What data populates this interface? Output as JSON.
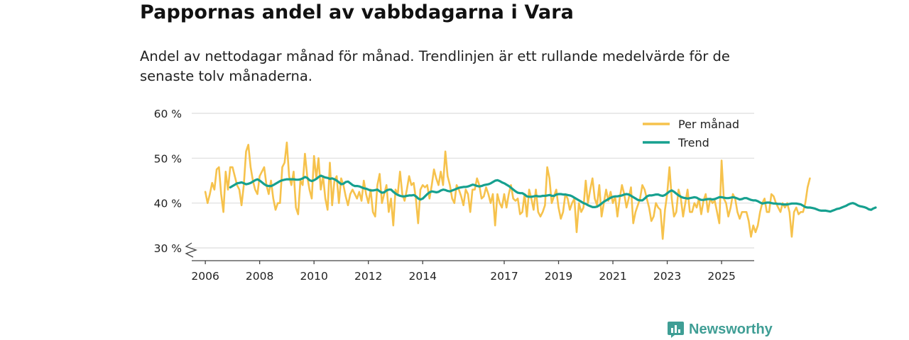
{
  "page": {
    "title": "Pappornas andel av vabbdagarna i Vara",
    "subtitle": "Andel av nettodagar månad för månad. Trendlinjen är ett rullande medelvärde för de senaste tolv månaderna.",
    "brand": "Newsworthy"
  },
  "colors": {
    "monthly": "#f6c24c",
    "trend": "#16a08f",
    "grid": "#dddddd",
    "axis": "#444444",
    "text": "#222222",
    "brand": "#3f9e95"
  },
  "chart_data": {
    "type": "line",
    "title": "Pappornas andel av vabbdagarna i Vara",
    "xlabel": "",
    "ylabel": "",
    "xlim": [
      2005.5,
      2026.2
    ],
    "ylim": [
      28,
      60
    ],
    "y_axis_break": true,
    "grid": "horizontal",
    "legend_position": "top-right",
    "xticks": [
      {
        "value": 2006,
        "label": "2006"
      },
      {
        "value": 2008,
        "label": "2008"
      },
      {
        "value": 2010,
        "label": "2010"
      },
      {
        "value": 2012,
        "label": "2012"
      },
      {
        "value": 2014,
        "label": "2014"
      },
      {
        "value": 2017,
        "label": "2017"
      },
      {
        "value": 2019,
        "label": "2019"
      },
      {
        "value": 2021,
        "label": "2021"
      },
      {
        "value": 2023,
        "label": "2023"
      },
      {
        "value": 2025,
        "label": "2025"
      }
    ],
    "yticks": [
      {
        "value": 30,
        "label": "30 %"
      },
      {
        "value": 40,
        "label": "40 %"
      },
      {
        "value": 50,
        "label": "50 %"
      },
      {
        "value": 60,
        "label": "60 %"
      }
    ],
    "series": [
      {
        "name": "Per månad",
        "key": "monthly",
        "start": 2006.0,
        "step": 0.08333,
        "values": [
          42.5,
          40,
          42,
          44.5,
          43,
          47.5,
          48,
          42,
          38,
          47,
          43,
          48,
          48,
          46,
          44,
          43,
          39.5,
          44,
          51.5,
          53,
          48,
          45,
          43,
          42,
          46,
          47,
          48,
          44,
          42,
          45,
          41,
          38.5,
          40,
          40,
          48,
          49,
          53.5,
          46,
          44,
          47,
          39,
          37.5,
          45,
          44,
          51,
          46,
          43,
          41,
          50.5,
          45.5,
          50,
          43,
          46,
          41,
          38.5,
          49,
          39.5,
          45,
          46,
          40,
          45.5,
          44,
          41.5,
          39.5,
          42,
          43,
          42,
          41,
          42.5,
          40.5,
          45,
          42,
          40,
          43,
          38,
          37,
          44,
          46.5,
          40,
          42,
          44,
          38,
          41,
          35,
          43,
          42,
          47,
          42,
          40.5,
          43,
          46,
          44,
          44.5,
          41,
          35.5,
          43,
          44,
          43.5,
          44,
          41,
          44,
          47.5,
          45.5,
          44,
          47,
          44,
          51.5,
          46,
          44,
          41,
          40,
          44,
          43,
          41.5,
          39.5,
          43,
          42,
          38,
          43,
          43,
          45.5,
          44,
          41,
          41.5,
          43.5,
          42,
          40,
          42,
          35,
          42,
          40,
          39,
          42,
          39,
          42,
          44,
          41,
          40.5,
          41,
          37.5,
          38,
          42,
          37,
          43,
          41,
          38.5,
          43,
          38,
          37,
          38,
          39.5,
          48,
          45.5,
          40,
          41.5,
          43,
          39,
          36.5,
          38,
          42,
          41,
          38.5,
          40,
          41,
          33.5,
          40,
          38,
          39,
          45,
          40,
          43,
          45.5,
          41,
          39.5,
          44,
          37,
          40,
          43,
          40.5,
          42.5,
          40,
          41.5,
          37,
          41,
          44,
          42,
          39,
          41,
          43.5,
          35.5,
          38,
          39.5,
          41,
          44,
          43,
          41,
          39,
          36,
          37,
          40,
          39,
          38.5,
          32,
          38.5,
          42,
          48,
          41,
          37,
          38,
          43,
          41,
          37,
          40,
          43,
          38,
          38,
          40,
          39,
          41,
          37.5,
          40.5,
          42,
          38,
          41,
          40,
          40.5,
          38,
          35.5,
          49.5,
          41,
          40,
          37,
          39,
          42,
          41,
          38,
          36.5,
          38,
          38,
          38,
          36,
          32.5,
          35,
          33.5,
          35,
          38,
          40,
          41,
          38,
          38,
          42,
          41.5,
          40,
          39,
          38,
          40,
          39,
          40,
          38,
          32.5,
          38,
          39,
          37.5,
          38,
          38,
          40,
          43.5,
          45.5
        ]
      },
      {
        "name": "Trend",
        "key": "trend",
        "start": 2006.92,
        "step": 0.08333,
        "values": [
          43.5,
          43.8,
          44.1,
          44.4,
          44.5,
          44.6,
          44.4,
          44.2,
          44.3,
          44.5,
          44.8,
          45.1,
          45.3,
          45.0,
          44.6,
          44.2,
          43.9,
          43.8,
          43.8,
          44.0,
          44.3,
          44.6,
          44.9,
          45.1,
          45.2,
          45.3,
          45.3,
          45.3,
          45.3,
          45.2,
          45.2,
          45.3,
          45.5,
          45.8,
          45.6,
          45.1,
          44.9,
          45.1,
          45.4,
          45.8,
          46.1,
          45.9,
          45.7,
          45.6,
          45.4,
          45.5,
          45.3,
          45.0,
          44.6,
          44.2,
          44.3,
          44.7,
          44.8,
          44.4,
          44.0,
          43.8,
          43.8,
          43.7,
          43.5,
          43.3,
          43.2,
          43.0,
          42.8,
          42.8,
          42.9,
          43.0,
          42.6,
          42.3,
          42.4,
          42.8,
          43.0,
          43.0,
          42.5,
          42.1,
          41.8,
          41.6,
          41.5,
          41.5,
          41.6,
          41.7,
          41.7,
          41.8,
          41.5,
          41.0,
          40.8,
          41.0,
          41.5,
          42.0,
          42.4,
          42.6,
          42.5,
          42.4,
          42.5,
          42.8,
          43.0,
          42.9,
          42.7,
          42.6,
          42.8,
          43.0,
          43.2,
          43.4,
          43.5,
          43.6,
          43.6,
          43.7,
          43.9,
          44.1,
          44.0,
          43.8,
          43.7,
          43.8,
          44.0,
          44.1,
          44.2,
          44.4,
          44.7,
          45.0,
          45.1,
          44.9,
          44.6,
          44.4,
          44.1,
          43.8,
          43.4,
          43.0,
          42.6,
          42.3,
          42.2,
          42.2,
          41.9,
          41.5,
          41.4,
          41.4,
          41.5,
          41.6,
          41.5,
          41.5,
          41.6,
          41.6,
          41.7,
          41.8,
          41.6,
          41.6,
          41.9,
          42.0,
          42.0,
          41.9,
          41.9,
          41.8,
          41.7,
          41.5,
          41.2,
          40.9,
          40.6,
          40.3,
          40.0,
          39.8,
          39.5,
          39.3,
          39.1,
          39.1,
          39.2,
          39.5,
          39.9,
          40.3,
          40.6,
          40.9,
          41.2,
          41.4,
          41.5,
          41.5,
          41.6,
          41.7,
          41.9,
          42.0,
          41.9,
          41.6,
          41.3,
          41.0,
          40.7,
          40.6,
          40.6,
          41.0,
          41.5,
          41.7,
          41.7,
          41.8,
          41.9,
          41.9,
          41.7,
          41.6,
          41.8,
          42.2,
          42.6,
          42.8,
          42.5,
          42.1,
          41.7,
          41.4,
          41.2,
          41.1,
          41.0,
          41.1,
          41.2,
          41.3,
          41.2,
          40.9,
          40.7,
          40.7,
          40.8,
          40.9,
          40.9,
          40.8,
          40.9,
          41.1,
          41.3,
          41.3,
          41.2,
          41.1,
          41.1,
          41.2,
          41.3,
          41.2,
          41.0,
          40.8,
          40.9,
          41.1,
          41.1,
          40.9,
          40.7,
          40.6,
          40.6,
          40.4,
          40.1,
          39.9,
          40.0,
          40.1,
          40.1,
          40.0,
          39.9,
          39.9,
          39.8,
          39.8,
          39.7,
          39.7,
          39.7,
          39.8,
          39.9,
          39.9,
          39.9,
          39.8,
          39.7,
          39.4,
          39.1,
          39.0,
          39.0,
          38.9,
          38.8,
          38.6,
          38.4,
          38.3,
          38.3,
          38.3,
          38.2,
          38.1,
          38.3,
          38.5,
          38.7,
          38.8,
          39.0,
          39.2,
          39.4,
          39.7,
          39.9,
          40.0,
          39.8,
          39.5,
          39.3,
          39.2,
          39.1,
          38.9,
          38.6,
          38.5,
          38.8,
          39.0
        ]
      }
    ]
  }
}
